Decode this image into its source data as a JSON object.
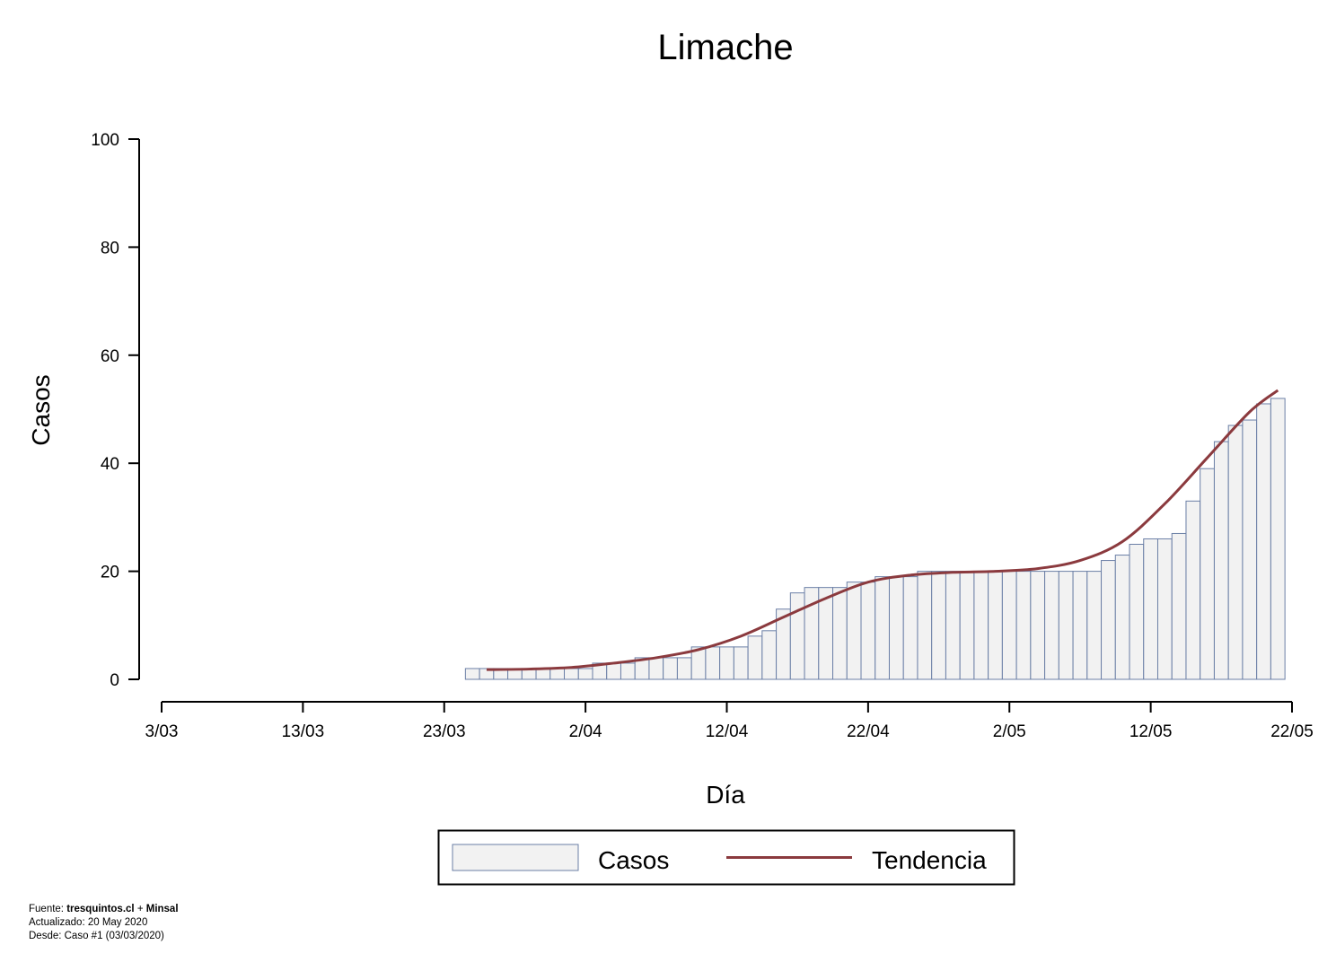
{
  "chart_data": {
    "type": "bar",
    "title": "Limache",
    "xlabel": "Día",
    "ylabel": "Casos",
    "ylim": [
      0,
      100
    ],
    "yticks": [
      0,
      20,
      40,
      60,
      80,
      100
    ],
    "x_ticks": [
      "3/03",
      "13/03",
      "23/03",
      "2/04",
      "12/04",
      "22/04",
      "2/05",
      "12/05",
      "22/05"
    ],
    "x_start": "2020-03-03",
    "x_end": "2020-05-22",
    "series": [
      {
        "name": "Casos",
        "type": "bar",
        "color": "#f2f2f2",
        "edge_color": "#6b7fa6",
        "start_date": "2020-03-25",
        "values": [
          2,
          2,
          2,
          2,
          2,
          2,
          2,
          2,
          2,
          3,
          3,
          3,
          4,
          4,
          4,
          4,
          6,
          6,
          6,
          6,
          8,
          9,
          13,
          16,
          17,
          17,
          17,
          18,
          18,
          19,
          19,
          19,
          20,
          20,
          20,
          20,
          20,
          20,
          20,
          20,
          20,
          20,
          20,
          20,
          20,
          22,
          23,
          25,
          26,
          26,
          27,
          33,
          39,
          44,
          47,
          48,
          51,
          52
        ]
      },
      {
        "name": "Tendencia",
        "type": "line",
        "color": "#8b3a3e",
        "points": [
          [
            "2020-03-26",
            1.8
          ],
          [
            "2020-03-29",
            1.9
          ],
          [
            "2020-04-01",
            2.2
          ],
          [
            "2020-04-04",
            3.0
          ],
          [
            "2020-04-07",
            4.0
          ],
          [
            "2020-04-10",
            5.5
          ],
          [
            "2020-04-13",
            8.0
          ],
          [
            "2020-04-16",
            11.5
          ],
          [
            "2020-04-19",
            15.0
          ],
          [
            "2020-04-22",
            18.0
          ],
          [
            "2020-04-25",
            19.3
          ],
          [
            "2020-04-28",
            19.8
          ],
          [
            "2020-05-01",
            20.0
          ],
          [
            "2020-05-04",
            20.5
          ],
          [
            "2020-05-07",
            22.0
          ],
          [
            "2020-05-10",
            25.5
          ],
          [
            "2020-05-13",
            32.5
          ],
          [
            "2020-05-16",
            41.0
          ],
          [
            "2020-05-19",
            49.5
          ],
          [
            "2020-05-21",
            53.5
          ]
        ]
      }
    ],
    "legend": {
      "position": "bottom",
      "items": [
        "Casos",
        "Tendencia"
      ]
    }
  },
  "footer": {
    "fuente_label": "Fuente:",
    "fuente_site": "tresquintos.cl",
    "fuente_plus": "+",
    "fuente_org": "Minsal",
    "actualizado": "Actualizado: 20 May 2020",
    "desde": "Desde: Caso #1  (03/03/2020)"
  }
}
